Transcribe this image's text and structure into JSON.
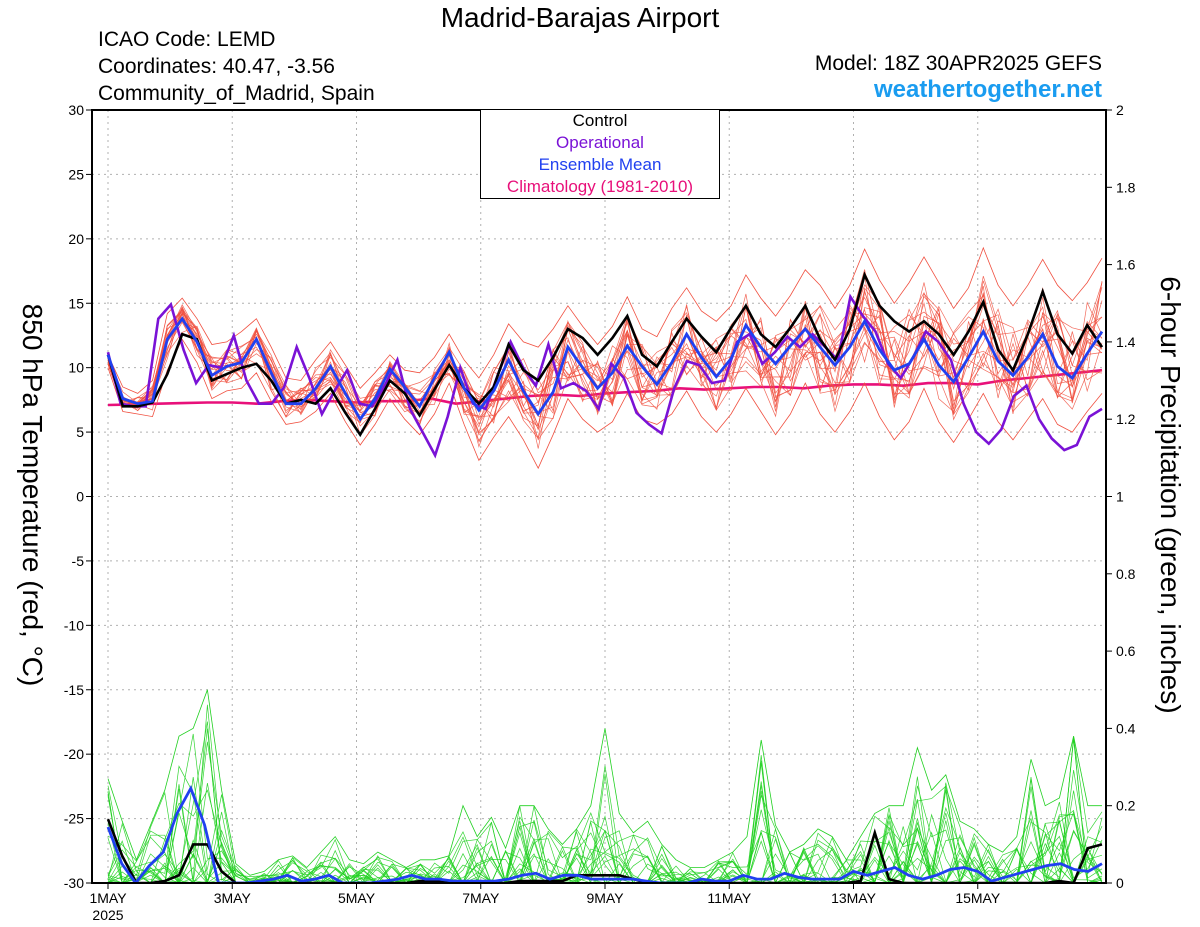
{
  "header": {
    "title": "Madrid-Barajas Airport",
    "icao": "ICAO Code: LEMD",
    "coordinates": "Coordinates: 40.47, -3.56",
    "region": "Community_of_Madrid, Spain",
    "model": "Model: 18Z 30APR2025 GEFS",
    "site": "weathertogether.net"
  },
  "colors": {
    "control": "#000000",
    "operational": "#7a12d6",
    "ensemble_mean": "#2040f0",
    "climatology": "#e8107a",
    "temp_members": "#f05040",
    "precip_members": "#20d020"
  },
  "legend": {
    "control": "Control",
    "operational": "Operational",
    "ensemble_mean": "Ensemble Mean",
    "climatology": "Climatology (1981-2010)"
  },
  "chart_data": {
    "type": "line",
    "xlabel": "",
    "ylabel": "850 hPa Temperature (red, °C)",
    "y2label": "6-hour Precipitation (green, inches)",
    "x_unit": "forecast hours from 00Z 1 May 2025 (6-hourly)",
    "x_range": [
      0,
      384
    ],
    "ylim": [
      -30,
      30
    ],
    "yticks": [
      30,
      25,
      20,
      15,
      10,
      5,
      0,
      -5,
      -10,
      -15,
      -20,
      -25,
      -30
    ],
    "y2lim": [
      0,
      2
    ],
    "y2ticks": [
      "2",
      "1.8",
      "1.6",
      "1.4",
      "1.2",
      "1",
      "0.8",
      "0.6",
      "0.4",
      "0.2",
      "0"
    ],
    "x_ticks": [
      {
        "hour": 0,
        "label": "1MAY",
        "sublabel": "2025"
      },
      {
        "hour": 48,
        "label": "3MAY"
      },
      {
        "hour": 96,
        "label": "5MAY"
      },
      {
        "hour": 144,
        "label": "7MAY"
      },
      {
        "hour": 192,
        "label": "9MAY"
      },
      {
        "hour": 240,
        "label": "11MAY"
      },
      {
        "hour": 288,
        "label": "13MAY"
      },
      {
        "hour": 336,
        "label": "15MAY"
      }
    ],
    "temperature": {
      "control": [
        11,
        7,
        7,
        7.3,
        9.5,
        12.6,
        12.2,
        9,
        9.5,
        10,
        10.3,
        9,
        7.2,
        7.5,
        7.2,
        8.4,
        6.5,
        4.8,
        6.8,
        9,
        8,
        6.3,
        8.3,
        10.2,
        8.4,
        7.2,
        8.5,
        11.8,
        9.8,
        9,
        10.8,
        13,
        12.3,
        11,
        12.3,
        14,
        11,
        10.1,
        12,
        13.8,
        12.4,
        11.2,
        13.1,
        14.8,
        12.6,
        11.6,
        13.1,
        14.8,
        12.2,
        10.6,
        13,
        17.2,
        14.8,
        13.6,
        12.8,
        13.6,
        12.6,
        11,
        12.8,
        15.1,
        11.4,
        9.8,
        12.6,
        15.9,
        12.6,
        11.1,
        13.3,
        11.6
      ],
      "operational": [
        11.2,
        7.2,
        7,
        7,
        13.8,
        14.9,
        11.4,
        8.8,
        10.2,
        10,
        12.5,
        9,
        7.2,
        7.2,
        8.5,
        11.6,
        9.2,
        6.4,
        8.2,
        9.8,
        7.2,
        7,
        8.6,
        10.6,
        6.8,
        5,
        3.2,
        6.2,
        10,
        7.2,
        6.8,
        9.5,
        12,
        10,
        8.6,
        11.8,
        8.4,
        8.8,
        8.2,
        6.8,
        10.3,
        9.2,
        6.5,
        5.6,
        4.9,
        8.4,
        10.5,
        10.2,
        8.8,
        9,
        12,
        12.6,
        10.3,
        11.2,
        12.4,
        11.6,
        12.6,
        11.6,
        10.6,
        15.5,
        14,
        12.8,
        10.3,
        9.2,
        10.8,
        12.8,
        12,
        10.6,
        7.2,
        5,
        4.1,
        5.2,
        7.8,
        8.6,
        6,
        4.5,
        3.6,
        4,
        6.2,
        6.8
      ],
      "ensemble_mean": [
        11,
        7.6,
        7.2,
        7.4,
        12.2,
        13.8,
        12,
        9.4,
        10.1,
        10.4,
        12.2,
        9.6,
        7.2,
        7.2,
        8.4,
        10.1,
        8,
        6,
        7.6,
        9.9,
        8.5,
        7,
        9.2,
        11.2,
        8.4,
        6.7,
        8.2,
        10.6,
        8.2,
        6.4,
        8.1,
        11.6,
        10,
        8.4,
        9.6,
        11.7,
        10.1,
        8.7,
        10.4,
        12.6,
        10.8,
        9.3,
        10.7,
        13.3,
        11.6,
        10.3,
        11.7,
        13,
        11.6,
        10.2,
        11.6,
        13.6,
        11.4,
        9.8,
        10.3,
        12.2,
        10.2,
        8.9,
        10.8,
        12.8,
        10.5,
        9.4,
        10.8,
        12.6,
        10.1,
        9.2,
        11.1,
        12.8
      ],
      "climatology": [
        7.1,
        7.15,
        7.2,
        7.25,
        7.3,
        7.3,
        7.2,
        7.4,
        7.5,
        7.4,
        7.3,
        7.4,
        7.4,
        7.6,
        7.2,
        7.4,
        7.6,
        7.8,
        7.9,
        7.8,
        8,
        8.1,
        8.2,
        8.4,
        8.3,
        8.4,
        8.5,
        8.5,
        8.4,
        8.6,
        8.7,
        8.7,
        8.6,
        8.8,
        8.8,
        8.7,
        9,
        9.2,
        9.4,
        9.6,
        9.8
      ],
      "members_band": {
        "upper": [
          11,
          8.5,
          8,
          9,
          14.2,
          15.4,
          13.8,
          11.8,
          12,
          12.8,
          13.8,
          11.6,
          9.2,
          9,
          10.6,
          12,
          10.2,
          8.4,
          9.6,
          11,
          9.8,
          9.6,
          10.8,
          12.6,
          10.6,
          9.2,
          11,
          13.4,
          12,
          11.6,
          13,
          14.8,
          13.2,
          11.8,
          13.2,
          15.5,
          13,
          12.4,
          14.6,
          16.2,
          14.4,
          13.6,
          14.8,
          17.2,
          15.4,
          14,
          15.6,
          17.6,
          16.4,
          14.6,
          16.4,
          19.2,
          16.8,
          15,
          16.6,
          18.6,
          16.6,
          14.6,
          16.2,
          19.3,
          16.4,
          14.8,
          16.4,
          18.4,
          16.4,
          15.2,
          16.6,
          18.5
        ],
        "lower": [
          10,
          6.6,
          6.4,
          6.2,
          9.8,
          12.2,
          10.4,
          7.6,
          8.2,
          8.4,
          9.6,
          7.4,
          5.6,
          5.8,
          6.6,
          8,
          5.8,
          4,
          5.6,
          7.6,
          6,
          4.8,
          6.4,
          8.8,
          5.6,
          2.8,
          4.6,
          6.2,
          4.4,
          2.2,
          4.8,
          7.6,
          6,
          5,
          5.8,
          8,
          6,
          5.6,
          6.4,
          8.2,
          6.2,
          5,
          6.4,
          8.4,
          6.6,
          4.8,
          6.4,
          8.8,
          6.4,
          5,
          6.6,
          8.8,
          6.2,
          4.4,
          5.8,
          8.4,
          5.8,
          4.2,
          6,
          8,
          5.8,
          4.4,
          6,
          7.6,
          5.6,
          5,
          6.6,
          8
        ]
      }
    },
    "precipitation": {
      "control": [
        0.165,
        0.07,
        0,
        0,
        0.005,
        0.02,
        0.1,
        0.1,
        0.03,
        0,
        0,
        0,
        0,
        0,
        0,
        0,
        0,
        0,
        0,
        0,
        0,
        0,
        0.005,
        0.005,
        0,
        0,
        0,
        0,
        0,
        0.005,
        0.005,
        0.005,
        0.005,
        0.02,
        0.02,
        0.02,
        0.02,
        0.01,
        0,
        0,
        0,
        0,
        0,
        0,
        0,
        0,
        0,
        0,
        0,
        0,
        0,
        0,
        0,
        0.005,
        0.13,
        0.01,
        0,
        0,
        0,
        0,
        0,
        0,
        0,
        0,
        0,
        0,
        0,
        0.005,
        0,
        0.09,
        0.1
      ],
      "ensemble_mean": [
        0.145,
        0.05,
        0,
        0.045,
        0.08,
        0.18,
        0.245,
        0.15,
        0,
        0,
        0,
        0.005,
        0.01,
        0.02,
        0.005,
        0.01,
        0.02,
        0,
        0,
        0,
        0.005,
        0.01,
        0.02,
        0.01,
        0.01,
        0.005,
        0.005,
        0.005,
        0.005,
        0.01,
        0.02,
        0.025,
        0.01,
        0.02,
        0.02,
        0.01,
        0.01,
        0.01,
        0.01,
        0.005,
        0,
        0,
        0,
        0.01,
        0.005,
        0.005,
        0.02,
        0.01,
        0.01,
        0.025,
        0.015,
        0.01,
        0.01,
        0.01,
        0.03,
        0.02,
        0.03,
        0.04,
        0.02,
        0.01,
        0.02,
        0.035,
        0.04,
        0.03,
        0.005,
        0.015,
        0.025,
        0.035,
        0.045,
        0.05,
        0.035,
        0.03,
        0.05
      ],
      "members_max": [
        0.27,
        0.16,
        0.06,
        0.15,
        0.24,
        0.38,
        0.4,
        0.5,
        0.24,
        0.05,
        0.02,
        0.03,
        0.06,
        0.07,
        0.04,
        0.08,
        0.12,
        0.06,
        0.05,
        0.08,
        0.06,
        0.04,
        0.06,
        0.06,
        0.07,
        0.2,
        0.12,
        0.17,
        0.09,
        0.2,
        0.2,
        0.14,
        0.1,
        0.14,
        0.2,
        0.4,
        0.18,
        0.13,
        0.16,
        0.1,
        0.06,
        0.04,
        0.04,
        0.06,
        0.08,
        0.12,
        0.37,
        0.15,
        0.08,
        0.1,
        0.14,
        0.12,
        0.06,
        0.12,
        0.18,
        0.2,
        0.2,
        0.35,
        0.24,
        0.28,
        0.16,
        0.14,
        0.1,
        0.08,
        0.12,
        0.32,
        0.2,
        0.22,
        0.38,
        0.2,
        0.2
      ]
    }
  }
}
